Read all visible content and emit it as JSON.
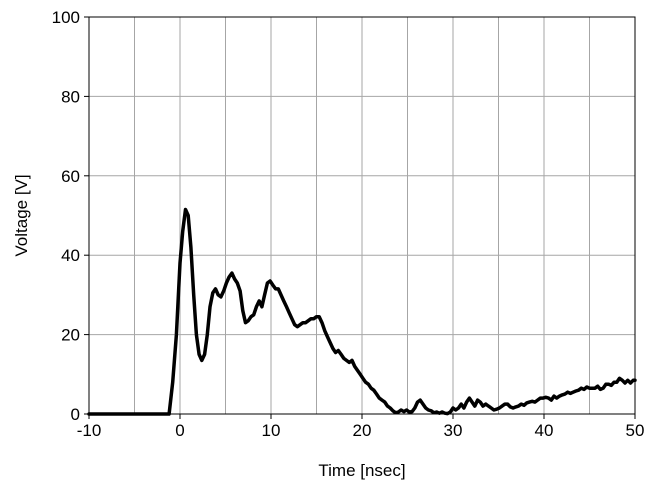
{
  "chart_data": {
    "type": "line",
    "xlabel": "Time [nsec]",
    "ylabel": "Voltage [V]",
    "xlim": [
      -10,
      50
    ],
    "ylim": [
      0,
      100
    ],
    "x_ticks": [
      -10,
      0,
      10,
      20,
      30,
      40,
      50
    ],
    "y_ticks": [
      0,
      20,
      40,
      60,
      80,
      100
    ],
    "x_tick_labels": [
      "-10",
      "0",
      "10",
      "20",
      "30",
      "40",
      "50"
    ],
    "y_tick_labels": [
      "0",
      "20",
      "40",
      "60",
      "80",
      "100"
    ],
    "grid": {
      "x_minor_step": 5,
      "y_step": 20
    },
    "series": [
      {
        "color": "#000000",
        "points": [
          [
            -10,
            0
          ],
          [
            -1.2,
            0
          ],
          [
            -0.8,
            8
          ],
          [
            -0.4,
            20
          ],
          [
            0,
            38
          ],
          [
            0.3,
            46
          ],
          [
            0.6,
            51.5
          ],
          [
            0.9,
            50
          ],
          [
            1.2,
            42
          ],
          [
            1.5,
            30
          ],
          [
            1.8,
            20
          ],
          [
            2.1,
            15
          ],
          [
            2.4,
            13.5
          ],
          [
            2.7,
            15
          ],
          [
            3.0,
            20
          ],
          [
            3.3,
            27
          ],
          [
            3.6,
            30.5
          ],
          [
            3.9,
            31.5
          ],
          [
            4.2,
            30
          ],
          [
            4.5,
            29.5
          ],
          [
            4.8,
            31
          ],
          [
            5.1,
            33
          ],
          [
            5.4,
            34.5
          ],
          [
            5.7,
            35.5
          ],
          [
            6.0,
            34
          ],
          [
            6.3,
            33
          ],
          [
            6.6,
            31
          ],
          [
            6.9,
            26
          ],
          [
            7.2,
            23
          ],
          [
            7.5,
            23.5
          ],
          [
            7.8,
            24.5
          ],
          [
            8.1,
            25
          ],
          [
            8.4,
            27
          ],
          [
            8.7,
            28.5
          ],
          [
            9.0,
            27
          ],
          [
            9.3,
            30
          ],
          [
            9.6,
            33
          ],
          [
            9.9,
            33.5
          ],
          [
            10.2,
            32.5
          ],
          [
            10.5,
            31.5
          ],
          [
            10.8,
            31.5
          ],
          [
            11.1,
            30
          ],
          [
            11.4,
            28.5
          ],
          [
            11.7,
            27
          ],
          [
            12.0,
            25.5
          ],
          [
            12.3,
            24
          ],
          [
            12.6,
            22.5
          ],
          [
            12.9,
            22
          ],
          [
            13.2,
            22.5
          ],
          [
            13.5,
            23
          ],
          [
            13.8,
            23
          ],
          [
            14.1,
            23.5
          ],
          [
            14.4,
            24
          ],
          [
            14.7,
            24
          ],
          [
            15.0,
            24.5
          ],
          [
            15.3,
            24.5
          ],
          [
            15.6,
            23
          ],
          [
            15.9,
            21
          ],
          [
            16.2,
            19.5
          ],
          [
            16.5,
            18
          ],
          [
            16.8,
            16.5
          ],
          [
            17.1,
            15.5
          ],
          [
            17.4,
            16
          ],
          [
            17.7,
            15
          ],
          [
            18.0,
            14
          ],
          [
            18.3,
            13.5
          ],
          [
            18.6,
            13
          ],
          [
            18.9,
            13.5
          ],
          [
            19.2,
            12
          ],
          [
            19.5,
            11
          ],
          [
            19.8,
            10
          ],
          [
            20.1,
            9
          ],
          [
            20.4,
            8
          ],
          [
            20.7,
            7.5
          ],
          [
            21.0,
            6.5
          ],
          [
            21.3,
            6
          ],
          [
            21.6,
            5
          ],
          [
            21.9,
            4
          ],
          [
            22.2,
            3.5
          ],
          [
            22.5,
            3
          ],
          [
            22.8,
            2
          ],
          [
            23.1,
            1.5
          ],
          [
            23.4,
            0.8
          ],
          [
            23.7,
            0.3
          ],
          [
            24.0,
            0.5
          ],
          [
            24.3,
            1
          ],
          [
            24.6,
            0.6
          ],
          [
            24.9,
            1
          ],
          [
            25.2,
            0.5
          ],
          [
            25.5,
            0.6
          ],
          [
            25.8,
            1.5
          ],
          [
            26.1,
            3
          ],
          [
            26.4,
            3.5
          ],
          [
            26.7,
            2.5
          ],
          [
            27.0,
            1.5
          ],
          [
            27.3,
            1
          ],
          [
            27.6,
            0.8
          ],
          [
            27.9,
            0.3
          ],
          [
            28.2,
            0.5
          ],
          [
            28.5,
            0.2
          ],
          [
            28.8,
            0.5
          ],
          [
            29.1,
            0.2
          ],
          [
            29.4,
            0.1
          ],
          [
            29.7,
            0.5
          ],
          [
            30.0,
            1.5
          ],
          [
            30.3,
            1
          ],
          [
            30.6,
            1.5
          ],
          [
            30.9,
            2.5
          ],
          [
            31.2,
            1.5
          ],
          [
            31.5,
            3
          ],
          [
            31.8,
            4
          ],
          [
            32.1,
            3
          ],
          [
            32.4,
            2
          ],
          [
            32.7,
            3.5
          ],
          [
            33.0,
            3
          ],
          [
            33.3,
            2
          ],
          [
            33.6,
            2.5
          ],
          [
            33.9,
            2
          ],
          [
            34.2,
            1.5
          ],
          [
            34.5,
            1
          ],
          [
            34.8,
            1.2
          ],
          [
            35.1,
            1.5
          ],
          [
            35.4,
            2
          ],
          [
            35.7,
            2.5
          ],
          [
            36.0,
            2.5
          ],
          [
            36.3,
            1.8
          ],
          [
            36.6,
            1.5
          ],
          [
            36.9,
            1.8
          ],
          [
            37.2,
            2
          ],
          [
            37.5,
            2.5
          ],
          [
            37.8,
            2.2
          ],
          [
            38.1,
            2.8
          ],
          [
            38.4,
            3
          ],
          [
            38.7,
            3.2
          ],
          [
            39.0,
            3
          ],
          [
            39.3,
            3.5
          ],
          [
            39.6,
            4
          ],
          [
            39.9,
            4
          ],
          [
            40.2,
            4.2
          ],
          [
            40.5,
            4
          ],
          [
            40.8,
            3.5
          ],
          [
            41.1,
            4.5
          ],
          [
            41.4,
            4
          ],
          [
            41.7,
            4.5
          ],
          [
            42.0,
            4.8
          ],
          [
            42.3,
            5
          ],
          [
            42.6,
            5.5
          ],
          [
            42.9,
            5.2
          ],
          [
            43.2,
            5.5
          ],
          [
            43.5,
            5.8
          ],
          [
            43.8,
            6
          ],
          [
            44.1,
            6.5
          ],
          [
            44.4,
            6.2
          ],
          [
            44.7,
            6.8
          ],
          [
            45.0,
            6.5
          ],
          [
            45.3,
            6.5
          ],
          [
            45.6,
            6.5
          ],
          [
            45.9,
            7
          ],
          [
            46.2,
            6.2
          ],
          [
            46.5,
            6.5
          ],
          [
            46.8,
            7.5
          ],
          [
            47.1,
            7.5
          ],
          [
            47.4,
            7.2
          ],
          [
            47.7,
            8
          ],
          [
            48.0,
            8
          ],
          [
            48.3,
            9
          ],
          [
            48.6,
            8.5
          ],
          [
            48.9,
            7.8
          ],
          [
            49.2,
            8.5
          ],
          [
            49.5,
            7.8
          ],
          [
            49.8,
            8.5
          ],
          [
            50.0,
            8.5
          ]
        ]
      }
    ]
  }
}
